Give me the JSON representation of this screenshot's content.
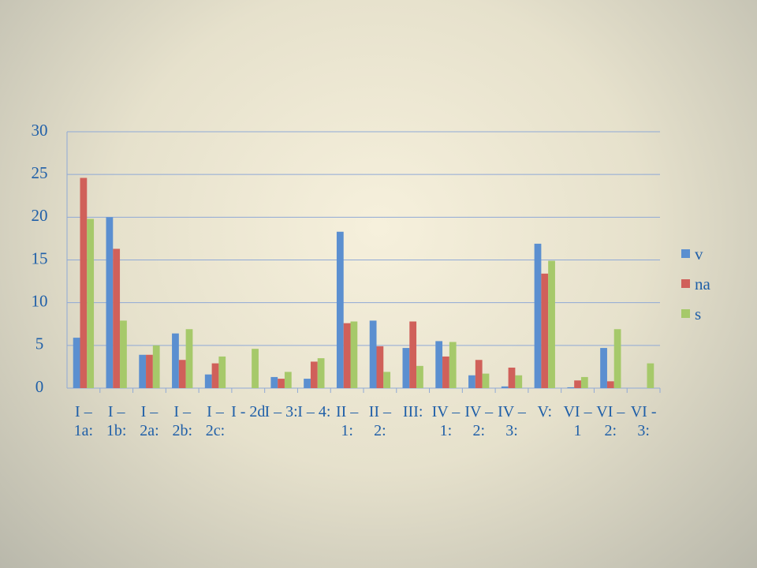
{
  "chart_data": {
    "type": "bar",
    "categories": [
      "I – 1a:",
      "I – 1b:",
      "I – 2a:",
      "I – 2b:",
      "I – 2c:",
      "I - 2d",
      "I – 3:",
      "I – 4:",
      "II – 1:",
      "II – 2:",
      "III:",
      "IV – 1:",
      "IV – 2:",
      "IV – 3:",
      "V:",
      "VI – 1",
      "VI – 2:",
      "VI - 3:"
    ],
    "series": [
      {
        "name": "v",
        "color": "#5b8fd0",
        "values": [
          5.9,
          20,
          3.9,
          6.4,
          1.6,
          0,
          1.3,
          1.1,
          18.3,
          7.9,
          4.7,
          5.5,
          1.5,
          0.2,
          16.9,
          0.1,
          4.7,
          0
        ]
      },
      {
        "name": "na",
        "color": "#d0605a",
        "values": [
          24.6,
          16.3,
          3.9,
          3.3,
          2.9,
          0,
          1.1,
          3.1,
          7.6,
          4.9,
          7.8,
          3.7,
          3.3,
          2.4,
          13.4,
          0.9,
          0.8,
          0
        ]
      },
      {
        "name": "s",
        "color": "#a6c96a",
        "values": [
          19.8,
          7.9,
          5.0,
          6.9,
          3.7,
          4.6,
          1.9,
          3.5,
          7.8,
          1.9,
          2.6,
          5.4,
          1.7,
          1.5,
          14.9,
          1.3,
          6.9,
          2.9
        ]
      }
    ],
    "ylim": [
      0,
      30
    ],
    "yticks": [
      0,
      5,
      10,
      15,
      20,
      25,
      30
    ],
    "grid": true,
    "legend": "right"
  }
}
